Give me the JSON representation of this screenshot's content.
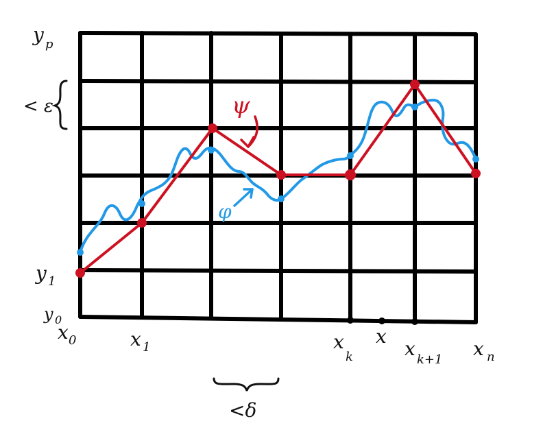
{
  "axis_labels": {
    "y_p": "y",
    "y_p_sub": "p",
    "y_1": "y",
    "y_1_sub": "1",
    "y_0": "y",
    "y_0_sub": "0",
    "x_0": "x",
    "x_0_sub": "0",
    "x_1": "x",
    "x_1_sub": "1",
    "x_k": "x",
    "x_k_sub": "k",
    "x": "x",
    "x_k1": "x",
    "x_k1_sub": "k+1",
    "x_n": "x",
    "x_n_sub": "n"
  },
  "annotations": {
    "epsilon": "< ε",
    "delta": "<δ",
    "psi": "ψ",
    "phi": "φ"
  },
  "colors": {
    "psi": "#cc1122",
    "phi": "#2299e6",
    "grid": "#000000"
  }
}
